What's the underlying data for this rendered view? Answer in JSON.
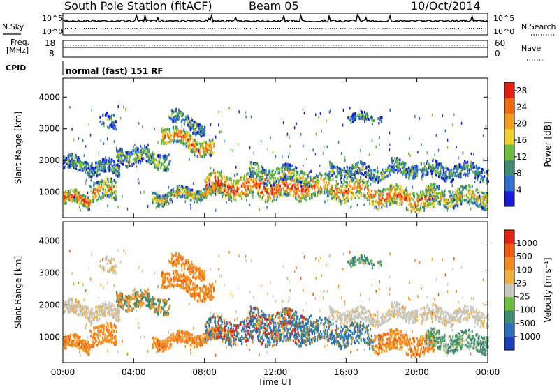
{
  "header": {
    "station": "South Pole Station (fitACF)",
    "beam": "Beam 05",
    "date": "10/Oct/2014"
  },
  "nsky": {
    "left_label": "N.Sky",
    "right_label": "N.Search",
    "tick_top_left": "10^5",
    "tick_bottom_left": "10^0",
    "tick_top_right": "10^5",
    "tick_bottom_right": "10^0"
  },
  "freq": {
    "label_line1": "Freq.",
    "label_line2": "[MHz]",
    "tick_high": "18",
    "tick_low": "8",
    "right_label": "Nave",
    "right_tick_high": "60",
    "right_tick_low": "0"
  },
  "cpid": {
    "label": "CPID",
    "value": "normal (fast) 151 RF"
  },
  "chart_data": [
    {
      "type": "heatmap",
      "name": "Power",
      "ylabel": "Slant Range [km]",
      "xlabel": "Time UT",
      "xlim": [
        0,
        24
      ],
      "ylim": [
        200,
        4600
      ],
      "yticks": [
        "1000",
        "2000",
        "3000",
        "4000"
      ],
      "colorbar": {
        "label": "Power [dB]",
        "ticks": [
          "4",
          "8",
          "12",
          "16",
          "20",
          "24",
          "28"
        ],
        "range": [
          0,
          30
        ],
        "colors": [
          "#1818d8",
          "#2d6fcf",
          "#3f8b72",
          "#6cbf3c",
          "#f0d22a",
          "#f49a1e",
          "#f06a10",
          "#e62010"
        ]
      }
    },
    {
      "type": "heatmap",
      "name": "Velocity",
      "ylabel": "Slant Range [km]",
      "xlabel": "Time UT",
      "xlim": [
        0,
        24
      ],
      "ylim": [
        200,
        4600
      ],
      "yticks": [
        "1000",
        "2000",
        "3000",
        "4000"
      ],
      "colorbar": {
        "label": "Velocity [m s⁻¹]",
        "ticks": [
          "1000",
          "500",
          "100",
          "25",
          "-25",
          "-100",
          "-500",
          "-1000"
        ],
        "colors": [
          "#1a3fb8",
          "#2b6fbf",
          "#3f8b72",
          "#6cbf3c",
          "#c8c8c0",
          "#f0b040",
          "#f38a1e",
          "#f05a10",
          "#e62010"
        ]
      }
    }
  ],
  "xaxis": {
    "ticks": [
      "00:00",
      "04:00",
      "08:00",
      "12:00",
      "16:00",
      "20:00",
      "00:00"
    ],
    "label": "Time UT"
  }
}
